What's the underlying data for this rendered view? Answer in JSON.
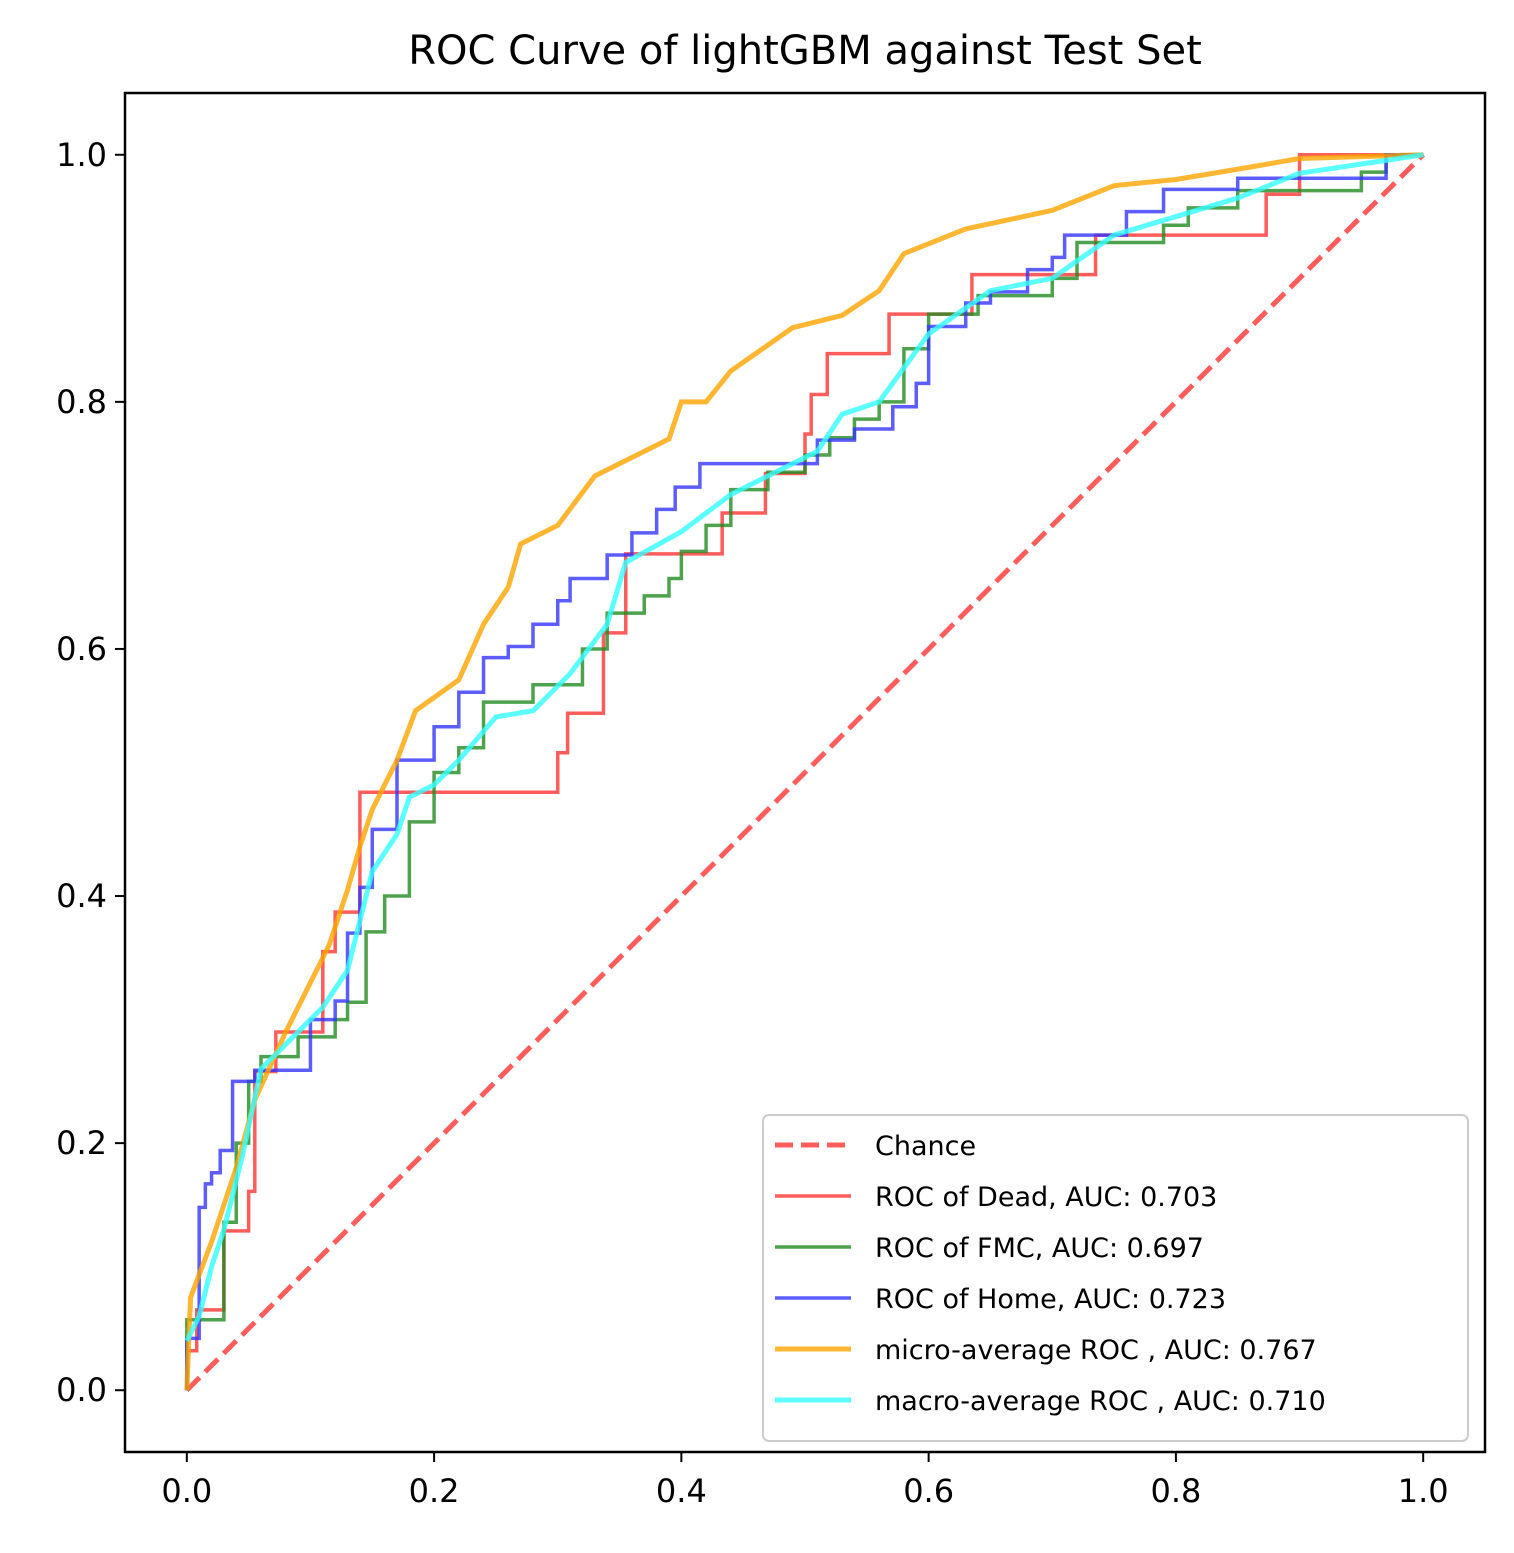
{
  "chart_data": {
    "type": "line",
    "title": "ROC Curve of lightGBM against Test Set",
    "xlabel": "",
    "ylabel": "",
    "xlim": [
      -0.05,
      1.05
    ],
    "ylim": [
      -0.05,
      1.05
    ],
    "xticks": [
      0.0,
      0.2,
      0.4,
      0.6,
      0.8,
      1.0
    ],
    "yticks": [
      0.0,
      0.2,
      0.4,
      0.6,
      0.8,
      1.0
    ],
    "xtick_labels": [
      "0.0",
      "0.2",
      "0.4",
      "0.6",
      "0.8",
      "1.0"
    ],
    "ytick_labels": [
      "0.0",
      "0.2",
      "0.4",
      "0.6",
      "0.8",
      "1.0"
    ],
    "grid": false,
    "legend_position": "lower-right",
    "series": [
      {
        "name": "Chance",
        "color": "#ff3333",
        "style": "dashed",
        "points": [
          [
            0.0,
            0.0
          ],
          [
            1.0,
            1.0
          ]
        ]
      },
      {
        "name": "ROC of Dead, AUC: 0.703",
        "color": "#ff3333",
        "style": "step",
        "points": [
          [
            0.0,
            0.0
          ],
          [
            0.0,
            0.032
          ],
          [
            0.008,
            0.032
          ],
          [
            0.008,
            0.065
          ],
          [
            0.03,
            0.065
          ],
          [
            0.03,
            0.129
          ],
          [
            0.05,
            0.129
          ],
          [
            0.05,
            0.161
          ],
          [
            0.055,
            0.161
          ],
          [
            0.055,
            0.258
          ],
          [
            0.072,
            0.258
          ],
          [
            0.072,
            0.29
          ],
          [
            0.11,
            0.29
          ],
          [
            0.11,
            0.355
          ],
          [
            0.12,
            0.355
          ],
          [
            0.12,
            0.387
          ],
          [
            0.14,
            0.387
          ],
          [
            0.14,
            0.484
          ],
          [
            0.3,
            0.484
          ],
          [
            0.3,
            0.516
          ],
          [
            0.308,
            0.516
          ],
          [
            0.308,
            0.548
          ],
          [
            0.337,
            0.548
          ],
          [
            0.337,
            0.613
          ],
          [
            0.355,
            0.613
          ],
          [
            0.355,
            0.677
          ],
          [
            0.433,
            0.677
          ],
          [
            0.433,
            0.71
          ],
          [
            0.468,
            0.71
          ],
          [
            0.468,
            0.742
          ],
          [
            0.5,
            0.742
          ],
          [
            0.5,
            0.774
          ],
          [
            0.505,
            0.774
          ],
          [
            0.505,
            0.806
          ],
          [
            0.518,
            0.806
          ],
          [
            0.518,
            0.839
          ],
          [
            0.568,
            0.839
          ],
          [
            0.568,
            0.871
          ],
          [
            0.635,
            0.871
          ],
          [
            0.635,
            0.903
          ],
          [
            0.735,
            0.903
          ],
          [
            0.735,
            0.935
          ],
          [
            0.873,
            0.935
          ],
          [
            0.873,
            0.968
          ],
          [
            0.9,
            0.968
          ],
          [
            0.9,
            1.0
          ],
          [
            1.0,
            1.0
          ]
        ]
      },
      {
        "name": "ROC of FMC, AUC: 0.697",
        "color": "#228b22",
        "style": "step",
        "points": [
          [
            0.0,
            0.0
          ],
          [
            0.0,
            0.057
          ],
          [
            0.03,
            0.057
          ],
          [
            0.03,
            0.136
          ],
          [
            0.04,
            0.136
          ],
          [
            0.04,
            0.2
          ],
          [
            0.05,
            0.2
          ],
          [
            0.05,
            0.25
          ],
          [
            0.06,
            0.25
          ],
          [
            0.06,
            0.27
          ],
          [
            0.09,
            0.27
          ],
          [
            0.09,
            0.286
          ],
          [
            0.12,
            0.286
          ],
          [
            0.12,
            0.3
          ],
          [
            0.13,
            0.3
          ],
          [
            0.13,
            0.314
          ],
          [
            0.145,
            0.314
          ],
          [
            0.145,
            0.371
          ],
          [
            0.16,
            0.371
          ],
          [
            0.16,
            0.4
          ],
          [
            0.18,
            0.4
          ],
          [
            0.18,
            0.46
          ],
          [
            0.2,
            0.46
          ],
          [
            0.2,
            0.5
          ],
          [
            0.22,
            0.5
          ],
          [
            0.22,
            0.52
          ],
          [
            0.24,
            0.52
          ],
          [
            0.24,
            0.557
          ],
          [
            0.28,
            0.557
          ],
          [
            0.28,
            0.571
          ],
          [
            0.32,
            0.571
          ],
          [
            0.32,
            0.6
          ],
          [
            0.34,
            0.6
          ],
          [
            0.34,
            0.629
          ],
          [
            0.37,
            0.629
          ],
          [
            0.37,
            0.643
          ],
          [
            0.39,
            0.643
          ],
          [
            0.39,
            0.657
          ],
          [
            0.4,
            0.657
          ],
          [
            0.4,
            0.679
          ],
          [
            0.42,
            0.679
          ],
          [
            0.42,
            0.7
          ],
          [
            0.44,
            0.7
          ],
          [
            0.44,
            0.729
          ],
          [
            0.47,
            0.729
          ],
          [
            0.47,
            0.743
          ],
          [
            0.5,
            0.743
          ],
          [
            0.5,
            0.757
          ],
          [
            0.52,
            0.757
          ],
          [
            0.52,
            0.771
          ],
          [
            0.54,
            0.771
          ],
          [
            0.54,
            0.786
          ],
          [
            0.56,
            0.786
          ],
          [
            0.56,
            0.8
          ],
          [
            0.58,
            0.8
          ],
          [
            0.58,
            0.843
          ],
          [
            0.6,
            0.843
          ],
          [
            0.6,
            0.871
          ],
          [
            0.64,
            0.871
          ],
          [
            0.64,
            0.886
          ],
          [
            0.7,
            0.886
          ],
          [
            0.7,
            0.9
          ],
          [
            0.72,
            0.9
          ],
          [
            0.72,
            0.929
          ],
          [
            0.79,
            0.929
          ],
          [
            0.79,
            0.943
          ],
          [
            0.81,
            0.943
          ],
          [
            0.81,
            0.957
          ],
          [
            0.85,
            0.957
          ],
          [
            0.85,
            0.971
          ],
          [
            0.95,
            0.971
          ],
          [
            0.95,
            0.986
          ],
          [
            0.97,
            0.986
          ],
          [
            0.97,
            1.0
          ],
          [
            1.0,
            1.0
          ]
        ]
      },
      {
        "name": "ROC of Home, AUC: 0.723",
        "color": "#3333ff",
        "style": "step",
        "points": [
          [
            0.0,
            0.0
          ],
          [
            0.0,
            0.042
          ],
          [
            0.01,
            0.042
          ],
          [
            0.01,
            0.148
          ],
          [
            0.015,
            0.148
          ],
          [
            0.015,
            0.167
          ],
          [
            0.02,
            0.167
          ],
          [
            0.02,
            0.176
          ],
          [
            0.027,
            0.176
          ],
          [
            0.027,
            0.194
          ],
          [
            0.037,
            0.194
          ],
          [
            0.037,
            0.204
          ],
          [
            0.037,
            0.25
          ],
          [
            0.055,
            0.25
          ],
          [
            0.055,
            0.259
          ],
          [
            0.1,
            0.259
          ],
          [
            0.1,
            0.3
          ],
          [
            0.12,
            0.3
          ],
          [
            0.12,
            0.315
          ],
          [
            0.13,
            0.315
          ],
          [
            0.13,
            0.37
          ],
          [
            0.14,
            0.37
          ],
          [
            0.14,
            0.407
          ],
          [
            0.15,
            0.407
          ],
          [
            0.15,
            0.454
          ],
          [
            0.17,
            0.454
          ],
          [
            0.17,
            0.51
          ],
          [
            0.2,
            0.51
          ],
          [
            0.2,
            0.537
          ],
          [
            0.22,
            0.537
          ],
          [
            0.22,
            0.565
          ],
          [
            0.24,
            0.565
          ],
          [
            0.24,
            0.593
          ],
          [
            0.26,
            0.593
          ],
          [
            0.26,
            0.602
          ],
          [
            0.28,
            0.602
          ],
          [
            0.28,
            0.62
          ],
          [
            0.3,
            0.62
          ],
          [
            0.3,
            0.639
          ],
          [
            0.31,
            0.639
          ],
          [
            0.31,
            0.657
          ],
          [
            0.34,
            0.657
          ],
          [
            0.34,
            0.676
          ],
          [
            0.36,
            0.676
          ],
          [
            0.36,
            0.694
          ],
          [
            0.38,
            0.694
          ],
          [
            0.38,
            0.713
          ],
          [
            0.395,
            0.713
          ],
          [
            0.395,
            0.731
          ],
          [
            0.415,
            0.731
          ],
          [
            0.415,
            0.75
          ],
          [
            0.51,
            0.75
          ],
          [
            0.51,
            0.769
          ],
          [
            0.54,
            0.769
          ],
          [
            0.54,
            0.778
          ],
          [
            0.571,
            0.778
          ],
          [
            0.571,
            0.796
          ],
          [
            0.59,
            0.796
          ],
          [
            0.59,
            0.815
          ],
          [
            0.6,
            0.815
          ],
          [
            0.6,
            0.861
          ],
          [
            0.63,
            0.861
          ],
          [
            0.63,
            0.88
          ],
          [
            0.65,
            0.88
          ],
          [
            0.65,
            0.889
          ],
          [
            0.68,
            0.889
          ],
          [
            0.68,
            0.907
          ],
          [
            0.7,
            0.907
          ],
          [
            0.7,
            0.917
          ],
          [
            0.71,
            0.917
          ],
          [
            0.71,
            0.935
          ],
          [
            0.76,
            0.935
          ],
          [
            0.76,
            0.954
          ],
          [
            0.79,
            0.954
          ],
          [
            0.79,
            0.972
          ],
          [
            0.85,
            0.972
          ],
          [
            0.85,
            0.981
          ],
          [
            0.97,
            0.981
          ],
          [
            0.97,
            1.0
          ],
          [
            1.0,
            1.0
          ]
        ]
      },
      {
        "name": "micro-average ROC , AUC: 0.767",
        "color": "#ffa500",
        "style": "line",
        "points": [
          [
            0.0,
            0.0
          ],
          [
            0.003,
            0.075
          ],
          [
            0.02,
            0.12
          ],
          [
            0.04,
            0.18
          ],
          [
            0.055,
            0.235
          ],
          [
            0.08,
            0.29
          ],
          [
            0.1,
            0.33
          ],
          [
            0.115,
            0.36
          ],
          [
            0.13,
            0.405
          ],
          [
            0.14,
            0.44
          ],
          [
            0.15,
            0.47
          ],
          [
            0.17,
            0.51
          ],
          [
            0.185,
            0.55
          ],
          [
            0.22,
            0.575
          ],
          [
            0.24,
            0.62
          ],
          [
            0.26,
            0.65
          ],
          [
            0.27,
            0.685
          ],
          [
            0.3,
            0.7
          ],
          [
            0.33,
            0.74
          ],
          [
            0.35,
            0.75
          ],
          [
            0.39,
            0.77
          ],
          [
            0.4,
            0.8
          ],
          [
            0.42,
            0.8
          ],
          [
            0.44,
            0.825
          ],
          [
            0.49,
            0.86
          ],
          [
            0.53,
            0.87
          ],
          [
            0.56,
            0.89
          ],
          [
            0.58,
            0.92
          ],
          [
            0.63,
            0.94
          ],
          [
            0.7,
            0.955
          ],
          [
            0.75,
            0.975
          ],
          [
            0.8,
            0.98
          ],
          [
            0.86,
            0.99
          ],
          [
            0.9,
            0.997
          ],
          [
            1.0,
            1.0
          ]
        ]
      },
      {
        "name": "macro-average ROC , AUC: 0.710",
        "color": "#33ffff",
        "style": "line",
        "points": [
          [
            0.0,
            0.04
          ],
          [
            0.01,
            0.06
          ],
          [
            0.02,
            0.1
          ],
          [
            0.03,
            0.13
          ],
          [
            0.045,
            0.19
          ],
          [
            0.06,
            0.26
          ],
          [
            0.09,
            0.29
          ],
          [
            0.11,
            0.31
          ],
          [
            0.13,
            0.34
          ],
          [
            0.15,
            0.42
          ],
          [
            0.17,
            0.45
          ],
          [
            0.18,
            0.48
          ],
          [
            0.2,
            0.49
          ],
          [
            0.22,
            0.51
          ],
          [
            0.25,
            0.545
          ],
          [
            0.28,
            0.55
          ],
          [
            0.31,
            0.58
          ],
          [
            0.34,
            0.62
          ],
          [
            0.355,
            0.67
          ],
          [
            0.4,
            0.695
          ],
          [
            0.44,
            0.725
          ],
          [
            0.48,
            0.745
          ],
          [
            0.51,
            0.76
          ],
          [
            0.53,
            0.79
          ],
          [
            0.56,
            0.8
          ],
          [
            0.6,
            0.855
          ],
          [
            0.65,
            0.89
          ],
          [
            0.7,
            0.9
          ],
          [
            0.75,
            0.935
          ],
          [
            0.8,
            0.95
          ],
          [
            0.85,
            0.965
          ],
          [
            0.9,
            0.985
          ],
          [
            1.0,
            1.0
          ]
        ]
      }
    ]
  }
}
